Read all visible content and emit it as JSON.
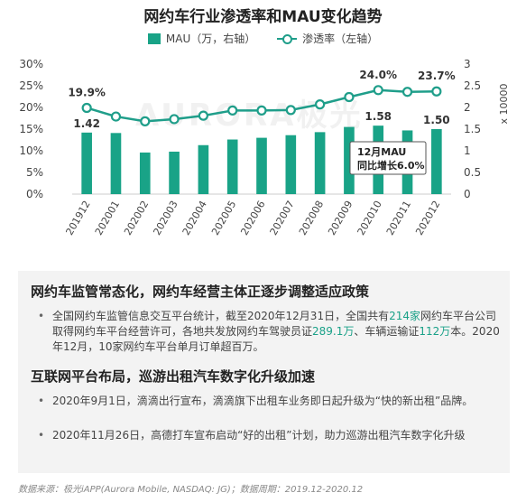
{
  "title": "网约车行业渗透率和MAU变化趋势",
  "watermark": "AURORA极光",
  "colors": {
    "bar": "#19a387",
    "line": "#1f9e8a",
    "text": "#333333",
    "highlight": "#1aa188",
    "panel": "#f3f3f3"
  },
  "chart_data": {
    "type": "bar+line",
    "categories": [
      "201912",
      "202001",
      "202002",
      "202003",
      "202004",
      "202005",
      "202006",
      "202007",
      "202008",
      "202009",
      "202010",
      "202011",
      "202012"
    ],
    "series": [
      {
        "name": "MAU（万，右轴）",
        "type": "bar",
        "axis": "right",
        "values": [
          1.42,
          1.41,
          0.96,
          0.98,
          1.13,
          1.26,
          1.3,
          1.36,
          1.43,
          1.55,
          1.58,
          1.47,
          1.5
        ]
      },
      {
        "name": "渗透率（左轴）",
        "type": "line",
        "axis": "left",
        "values": [
          19.9,
          17.9,
          16.8,
          17.3,
          18.1,
          19.3,
          19.3,
          19.4,
          20.7,
          22.4,
          24.0,
          23.6,
          23.7
        ]
      }
    ],
    "left_axis": {
      "min": 0,
      "max": 30,
      "ticks": [
        "0%",
        "5%",
        "10%",
        "15%",
        "20%",
        "25%",
        "30%"
      ]
    },
    "right_axis": {
      "min": 0,
      "max": 3,
      "ticks": [
        "0",
        "0.5",
        "1",
        "1.5",
        "2",
        "2.5",
        "3"
      ],
      "unit_label": "x 10000"
    },
    "bar_labels": [
      {
        "index": 0,
        "text": "1.42"
      },
      {
        "index": 10,
        "text": "1.58"
      },
      {
        "index": 12,
        "text": "1.50"
      }
    ],
    "line_labels": [
      {
        "index": 0,
        "text": "19.9%"
      },
      {
        "index": 10,
        "text": "24.0%"
      },
      {
        "index": 12,
        "text": "23.7%"
      }
    ],
    "callout": {
      "line1": "12月MAU",
      "line2": "同比增长6.0%"
    }
  },
  "sections": [
    {
      "title": "网约车监管常态化，网约车经营主体正逐步调整适应政策",
      "bullets": [
        {
          "parts": [
            {
              "t": "全国网约车监管信息交互平台统计，截至2020年12月31日，全国共有"
            },
            {
              "t": "214家",
              "hl": true
            },
            {
              "t": "网约车平台公司取得网约车平台经营许可，各地共发放网约车驾驶员证"
            },
            {
              "t": "289.1万",
              "hl": true
            },
            {
              "t": "、车辆运输证"
            },
            {
              "t": "112万",
              "hl": true
            },
            {
              "t": "本。2020年12月，10家网约车平台单月订单超百万。"
            }
          ]
        }
      ]
    },
    {
      "title": "互联网平台布局，巡游出租汽车数字化升级加速",
      "bullets": [
        {
          "parts": [
            {
              "t": "2020年9月1日，滴滴出行宣布，滴滴旗下出租车业务即日起升级为“快的新出租”品牌。"
            }
          ]
        },
        {
          "parts": [
            {
              "t": "2020年11月26日，高德打车宣布启动“好的出租”计划，助力巡游出租汽车数字化升级"
            }
          ]
        }
      ]
    }
  ],
  "footer": "数据来源：极光iAPP(Aurora Mobile, NASDAQ: JG)；数据周期：2019.12-2020.12"
}
